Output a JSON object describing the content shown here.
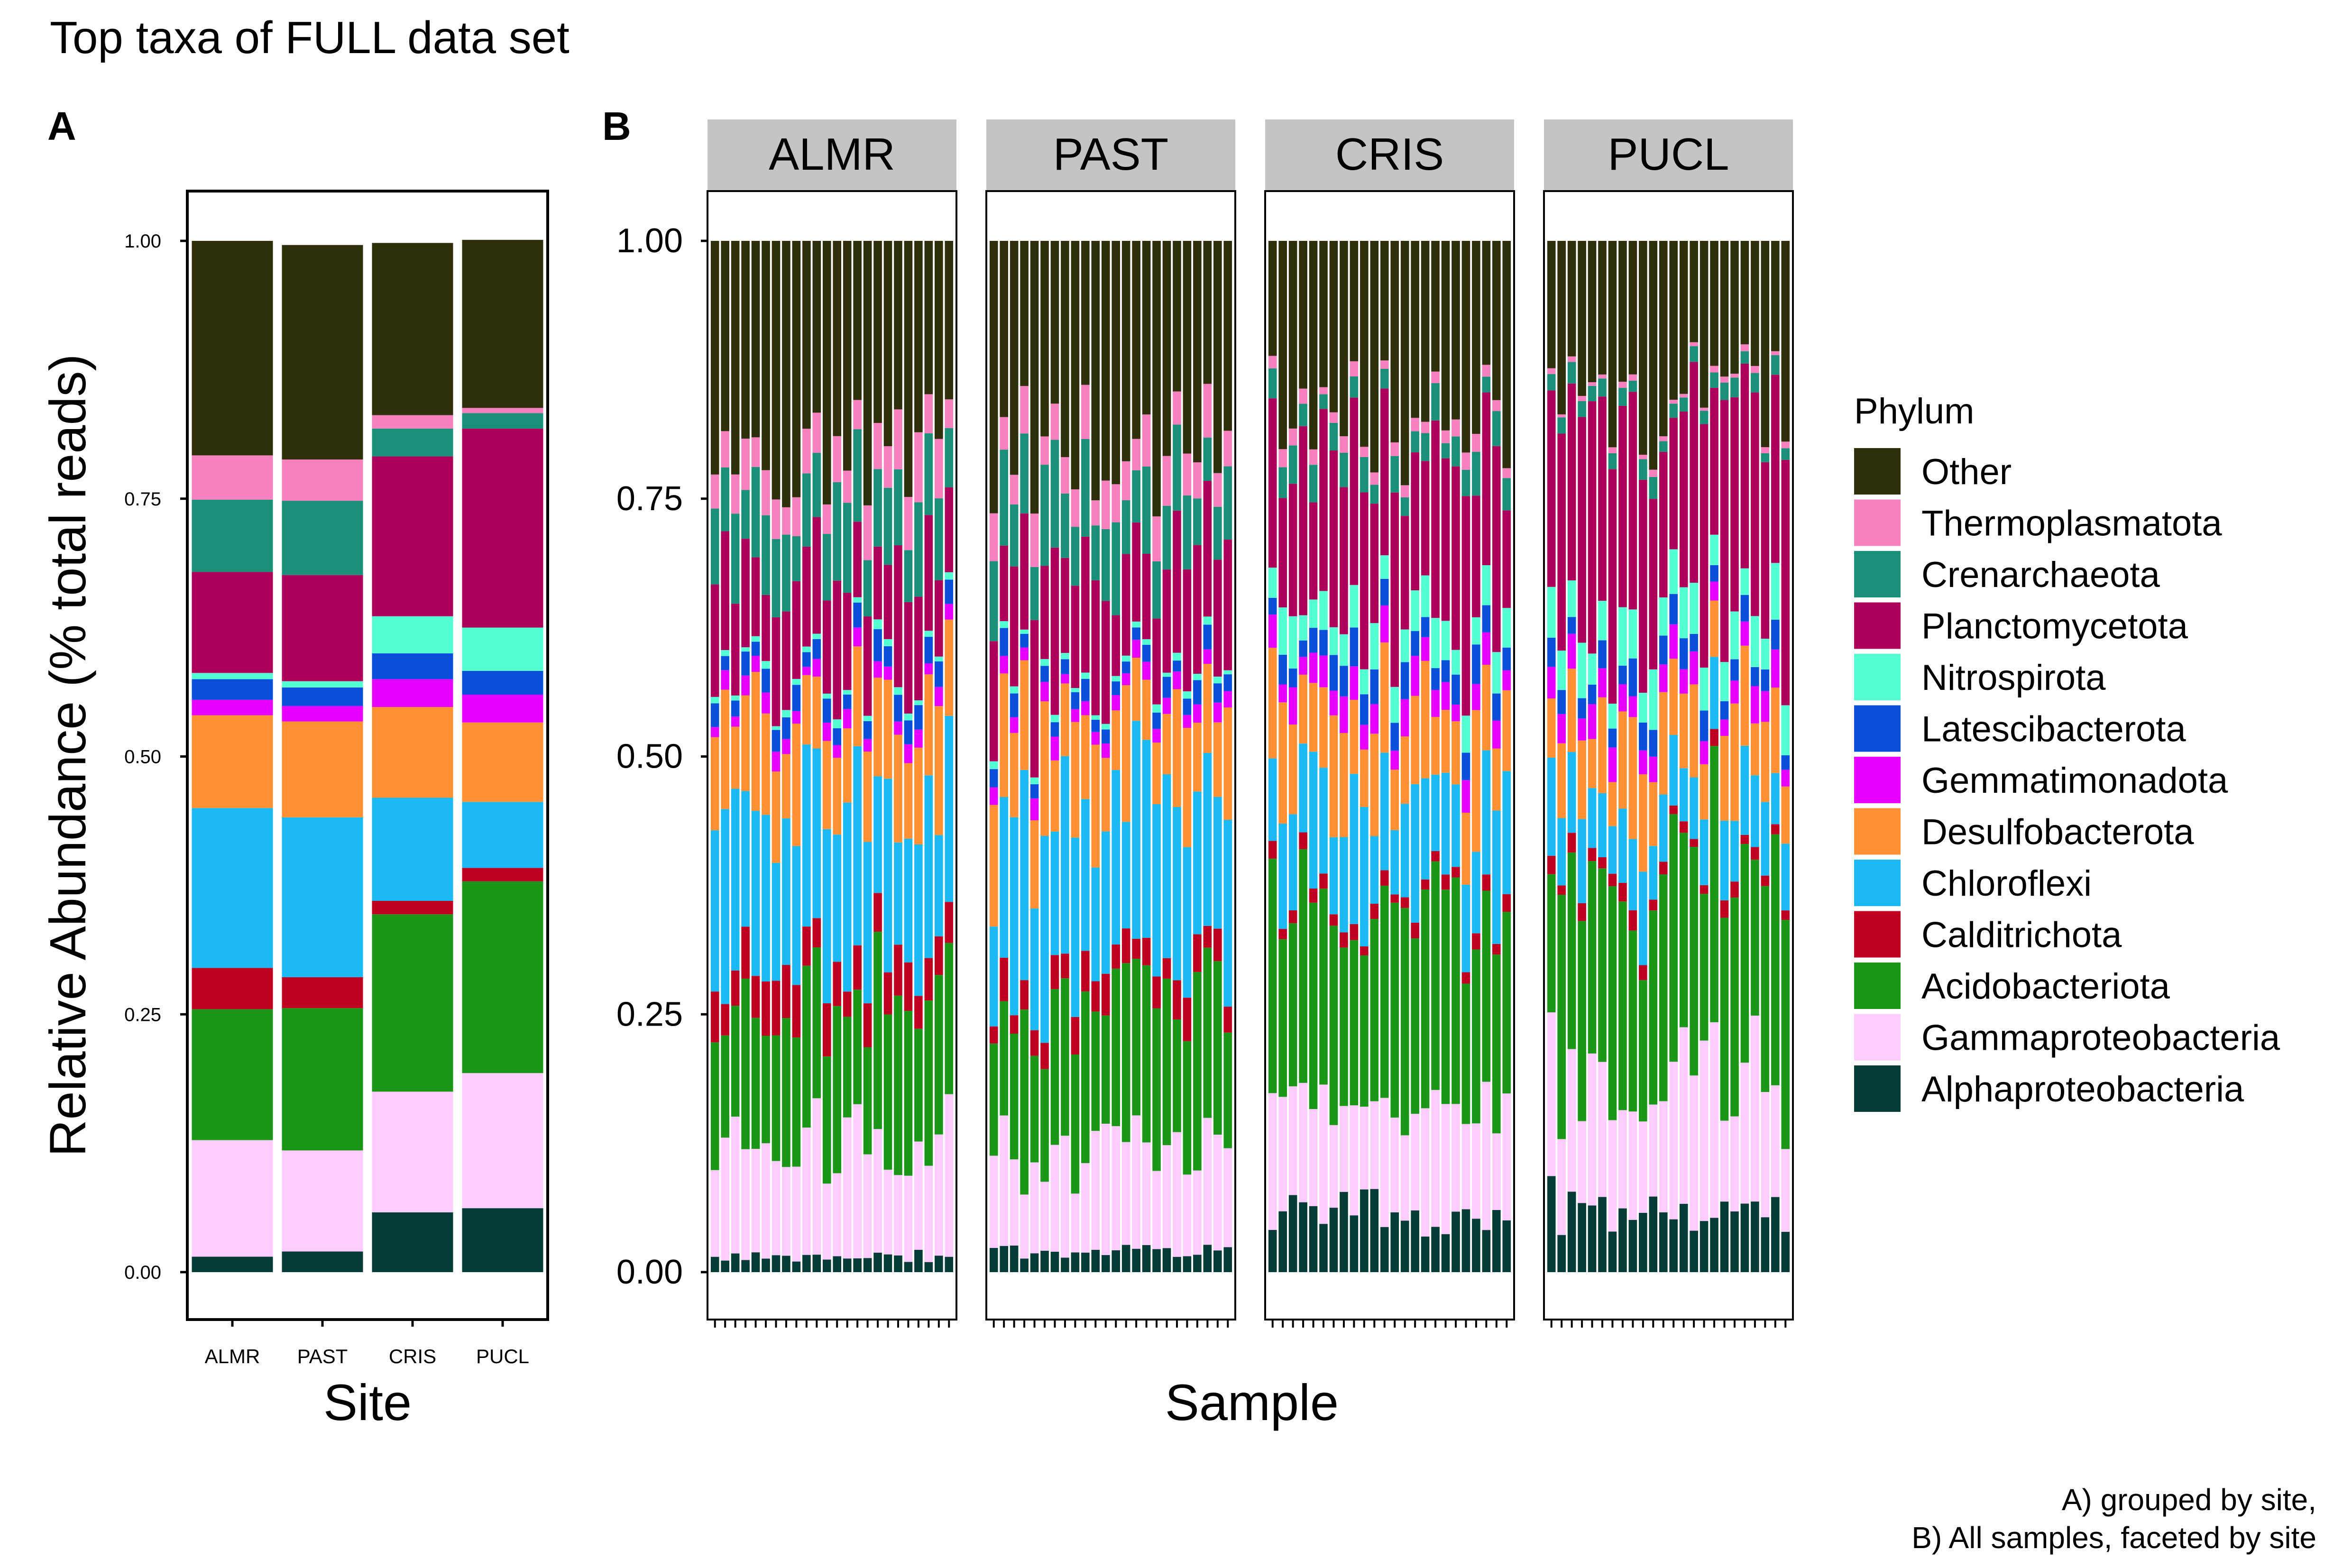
{
  "figure": {
    "title": "Top taxa of FULL data set",
    "caption": [
      "A) grouped by site,",
      "B) All samples, faceted by site"
    ]
  },
  "colors": {
    "Other": "#2f2f0b",
    "Thermoplasmatota": "#f781bf",
    "Crenarchaeota": "#1a9078",
    "Planctomycetota": "#ad005a",
    "Nitrospirota": "#55ffd4",
    "Latescibacterota": "#0a4fd9",
    "Gemmatimonadota": "#e600ff",
    "Desulfobacterota": "#ff9033",
    "Chloroflexi": "#1bbaf5",
    "Calditrichota": "#c00020",
    "Acidobacteriota": "#1c9618",
    "Gammaproteobacteria": "#ffccff",
    "Alphaproteobacteria": "#063b36"
  },
  "chart_data": [
    {
      "panel": "A",
      "type": "bar",
      "stacked": true,
      "xlabel": "Site",
      "ylabel": "Relative Abundance (% total reads)",
      "ylim": [
        0,
        1
      ],
      "yticks": [
        "0.00",
        "0.25",
        "0.50",
        "0.75",
        "1.00"
      ],
      "categories": [
        "ALMR",
        "PAST",
        "CRIS",
        "PUCL"
      ],
      "series": [
        {
          "name": "Alphaproteobacteria",
          "values": [
            0.015,
            0.02,
            0.058,
            0.062
          ]
        },
        {
          "name": "Gammaproteobacteria",
          "values": [
            0.113,
            0.098,
            0.117,
            0.131
          ]
        },
        {
          "name": "Acidobacteriota",
          "values": [
            0.127,
            0.138,
            0.172,
            0.186
          ]
        },
        {
          "name": "Calditrichota",
          "values": [
            0.04,
            0.03,
            0.013,
            0.013
          ]
        },
        {
          "name": "Chloroflexi",
          "values": [
            0.155,
            0.155,
            0.1,
            0.064
          ]
        },
        {
          "name": "Desulfobacterota",
          "values": [
            0.09,
            0.093,
            0.088,
            0.077
          ]
        },
        {
          "name": "Gemmatimonadota",
          "values": [
            0.015,
            0.015,
            0.027,
            0.027
          ]
        },
        {
          "name": "Latescibacterota",
          "values": [
            0.02,
            0.018,
            0.025,
            0.023
          ]
        },
        {
          "name": "Nitrospirota",
          "values": [
            0.006,
            0.006,
            0.036,
            0.042
          ]
        },
        {
          "name": "Planctomycetota",
          "values": [
            0.098,
            0.103,
            0.155,
            0.193
          ]
        },
        {
          "name": "Crenarchaeota",
          "values": [
            0.07,
            0.072,
            0.027,
            0.015
          ]
        },
        {
          "name": "Thermoplasmatota",
          "values": [
            0.043,
            0.04,
            0.013,
            0.005
          ]
        },
        {
          "name": "Other",
          "values": [
            0.208,
            0.208,
            0.167,
            0.163
          ]
        }
      ]
    },
    {
      "panel": "B",
      "type": "bar",
      "stacked": true,
      "xlabel": "Sample",
      "ylabel": "",
      "ylim": [
        0,
        1
      ],
      "yticks": [
        "0.00",
        "0.25",
        "0.50",
        "0.75",
        "1.00"
      ],
      "facets": [
        "ALMR",
        "PAST",
        "CRIS",
        "PUCL"
      ],
      "samples_per_facet": 24,
      "facet_means": {
        "ALMR": [
          0.015,
          0.113,
          0.127,
          0.04,
          0.155,
          0.09,
          0.015,
          0.02,
          0.006,
          0.098,
          0.07,
          0.043,
          0.208
        ],
        "PAST": [
          0.02,
          0.098,
          0.138,
          0.03,
          0.155,
          0.093,
          0.015,
          0.018,
          0.006,
          0.103,
          0.072,
          0.04,
          0.208
        ],
        "CRIS": [
          0.058,
          0.117,
          0.172,
          0.013,
          0.1,
          0.088,
          0.027,
          0.025,
          0.036,
          0.155,
          0.027,
          0.013,
          0.167
        ],
        "PUCL": [
          0.062,
          0.131,
          0.186,
          0.013,
          0.064,
          0.077,
          0.027,
          0.023,
          0.042,
          0.193,
          0.015,
          0.005,
          0.163
        ]
      }
    }
  ],
  "legend": {
    "title": "Phylum",
    "items": [
      "Other",
      "Thermoplasmatota",
      "Crenarchaeota",
      "Planctomycetota",
      "Nitrospirota",
      "Latescibacterota",
      "Gemmatimonadota",
      "Desulfobacterota",
      "Chloroflexi",
      "Calditrichota",
      "Acidobacteriota",
      "Gammaproteobacteria",
      "Alphaproteobacteria"
    ]
  }
}
